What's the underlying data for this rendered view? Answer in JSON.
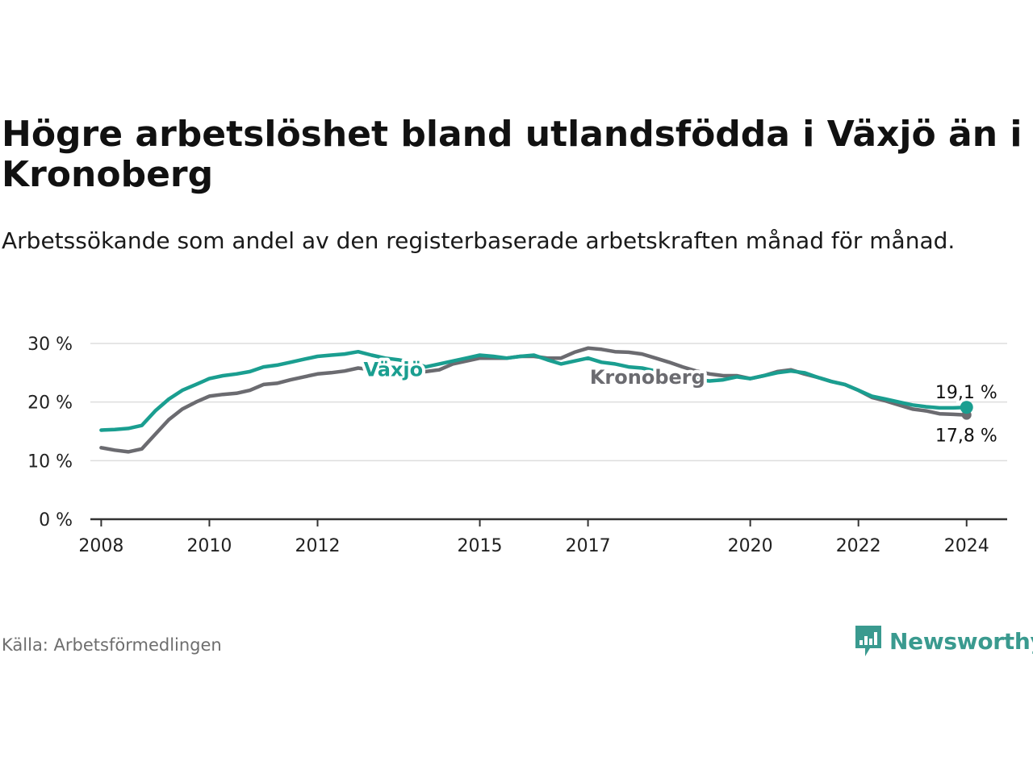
{
  "title": "Högre arbetslöshet bland utlandsfödda i Växjö än i Kronoberg",
  "subtitle": "Arbetssökande som andel av den registerbaserade arbetskraften månad för månad.",
  "source": "Källa: Arbetsförmedlingen",
  "brand": {
    "name": "Newsworthy",
    "color": "#3a9a8f",
    "icon": "bar-chart-speech-bubble-icon"
  },
  "colors": {
    "vaxjo": "#1a9e90",
    "kronoberg": "#6b6b70",
    "grid": "#dddddd",
    "axis": "#333333"
  },
  "chart_data": {
    "type": "line",
    "title": "Högre arbetslöshet bland utlandsfödda i Växjö än i Kronoberg",
    "xlabel": "",
    "ylabel": "",
    "ylim": [
      0,
      30
    ],
    "xlim": [
      2007.8,
      2024.75
    ],
    "y_ticks": [
      0,
      10,
      20,
      30
    ],
    "y_tick_labels": [
      "0 %",
      "10 %",
      "20 %",
      "30 %"
    ],
    "x_ticks": [
      2008,
      2010,
      2012,
      2015,
      2017,
      2020,
      2022,
      2024
    ],
    "x_tick_labels": [
      "2008",
      "2010",
      "2012",
      "2015",
      "2017",
      "2020",
      "2022",
      "2024"
    ],
    "grid": true,
    "series": [
      {
        "name": "Växjö",
        "label": "Växjö",
        "end_label": "19,1 %",
        "x": [
          2008.0,
          2008.25,
          2008.5,
          2008.75,
          2009.0,
          2009.25,
          2009.5,
          2009.75,
          2010.0,
          2010.25,
          2010.5,
          2010.75,
          2011.0,
          2011.25,
          2011.5,
          2011.75,
          2012.0,
          2012.25,
          2012.5,
          2012.75,
          2013.0,
          2013.25,
          2013.5,
          2013.75,
          2014.0,
          2014.25,
          2014.5,
          2014.75,
          2015.0,
          2015.25,
          2015.5,
          2015.75,
          2016.0,
          2016.25,
          2016.5,
          2016.75,
          2017.0,
          2017.25,
          2017.5,
          2017.75,
          2018.0,
          2018.25,
          2018.5,
          2018.75,
          2019.0,
          2019.25,
          2019.5,
          2019.75,
          2020.0,
          2020.25,
          2020.5,
          2020.75,
          2021.0,
          2021.25,
          2021.5,
          2021.75,
          2022.0,
          2022.25,
          2022.5,
          2022.75,
          2023.0,
          2023.25,
          2023.5,
          2023.75,
          2024.0
        ],
        "values": [
          15.2,
          15.3,
          15.5,
          16.0,
          18.5,
          20.5,
          22.0,
          23.0,
          24.0,
          24.5,
          24.8,
          25.2,
          26.0,
          26.3,
          26.8,
          27.3,
          27.8,
          28.0,
          28.2,
          28.6,
          28.0,
          27.5,
          27.2,
          26.8,
          26.0,
          26.5,
          27.0,
          27.5,
          28.0,
          27.8,
          27.5,
          27.8,
          28.0,
          27.2,
          26.5,
          27.0,
          27.5,
          26.8,
          26.5,
          26.0,
          25.8,
          25.3,
          24.8,
          24.3,
          23.8,
          23.6,
          23.8,
          24.3,
          24.0,
          24.5,
          25.0,
          25.3,
          25.0,
          24.2,
          23.5,
          23.0,
          22.0,
          21.0,
          20.5,
          20.0,
          19.5,
          19.2,
          19.0,
          19.0,
          19.1
        ]
      },
      {
        "name": "Kronoberg",
        "label": "Kronoberg",
        "end_label": "17,8 %",
        "x": [
          2008.0,
          2008.25,
          2008.5,
          2008.75,
          2009.0,
          2009.25,
          2009.5,
          2009.75,
          2010.0,
          2010.25,
          2010.5,
          2010.75,
          2011.0,
          2011.25,
          2011.5,
          2011.75,
          2012.0,
          2012.25,
          2012.5,
          2012.75,
          2013.0,
          2013.25,
          2013.5,
          2013.75,
          2014.0,
          2014.25,
          2014.5,
          2014.75,
          2015.0,
          2015.25,
          2015.5,
          2015.75,
          2016.0,
          2016.25,
          2016.5,
          2016.75,
          2017.0,
          2017.25,
          2017.5,
          2017.75,
          2018.0,
          2018.25,
          2018.5,
          2018.75,
          2019.0,
          2019.25,
          2019.5,
          2019.75,
          2020.0,
          2020.25,
          2020.5,
          2020.75,
          2021.0,
          2021.25,
          2021.5,
          2021.75,
          2022.0,
          2022.25,
          2022.5,
          2022.75,
          2023.0,
          2023.25,
          2023.5,
          2023.75,
          2024.0
        ],
        "values": [
          12.2,
          11.8,
          11.5,
          12.0,
          14.5,
          17.0,
          18.8,
          20.0,
          21.0,
          21.3,
          21.5,
          22.0,
          23.0,
          23.2,
          23.8,
          24.3,
          24.8,
          25.0,
          25.3,
          25.8,
          25.5,
          25.5,
          26.0,
          25.8,
          25.2,
          25.5,
          26.5,
          27.0,
          27.5,
          27.5,
          27.5,
          27.8,
          27.8,
          27.5,
          27.5,
          28.5,
          29.2,
          29.0,
          28.6,
          28.5,
          28.2,
          27.5,
          26.8,
          26.0,
          25.3,
          24.8,
          24.5,
          24.5,
          24.0,
          24.5,
          25.2,
          25.5,
          24.8,
          24.2,
          23.5,
          23.0,
          22.0,
          20.8,
          20.2,
          19.5,
          18.8,
          18.5,
          18.0,
          17.9,
          17.8
        ]
      }
    ]
  }
}
